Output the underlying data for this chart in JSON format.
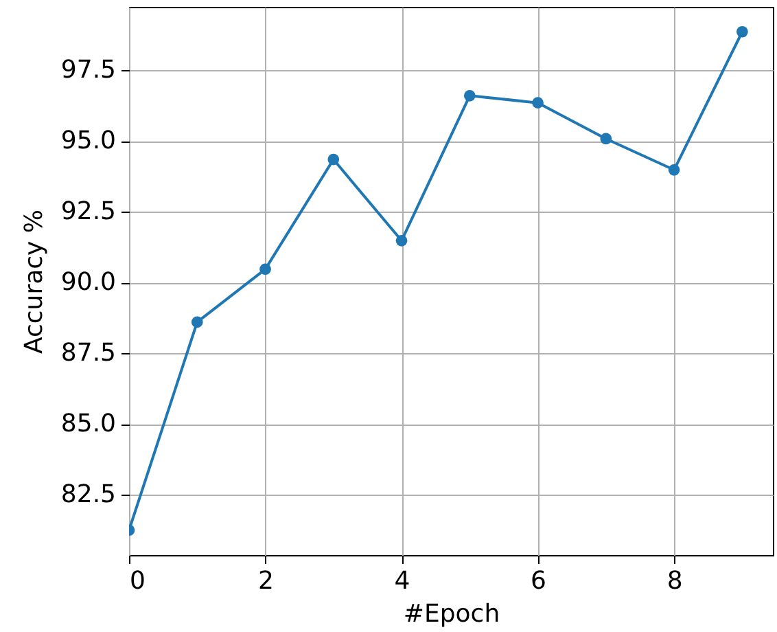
{
  "chart_data": {
    "type": "line",
    "xlabel": "#Epoch",
    "ylabel": "Accuracy %",
    "x": [
      0,
      1,
      2,
      3,
      4,
      5,
      6,
      7,
      8,
      9
    ],
    "series": [
      {
        "color": "#1f77b4",
        "values": [
          81.25,
          88.6,
          90.47,
          94.35,
          91.48,
          96.6,
          96.35,
          95.08,
          93.98,
          98.86
        ]
      }
    ],
    "xlim": [
      0,
      9.45
    ],
    "xticks": [
      0,
      2,
      4,
      6,
      8
    ],
    "ylim": [
      80.37,
      99.74
    ],
    "yticks": [
      82.5,
      {
        "value": 85,
        "label": "85.0"
      },
      87.5,
      {
        "value": 90,
        "label": "90.0"
      },
      92.5,
      {
        "value": 95,
        "label": "95.0"
      },
      97.5
    ],
    "grid": true,
    "marker": "circle",
    "line_style": "solid"
  }
}
